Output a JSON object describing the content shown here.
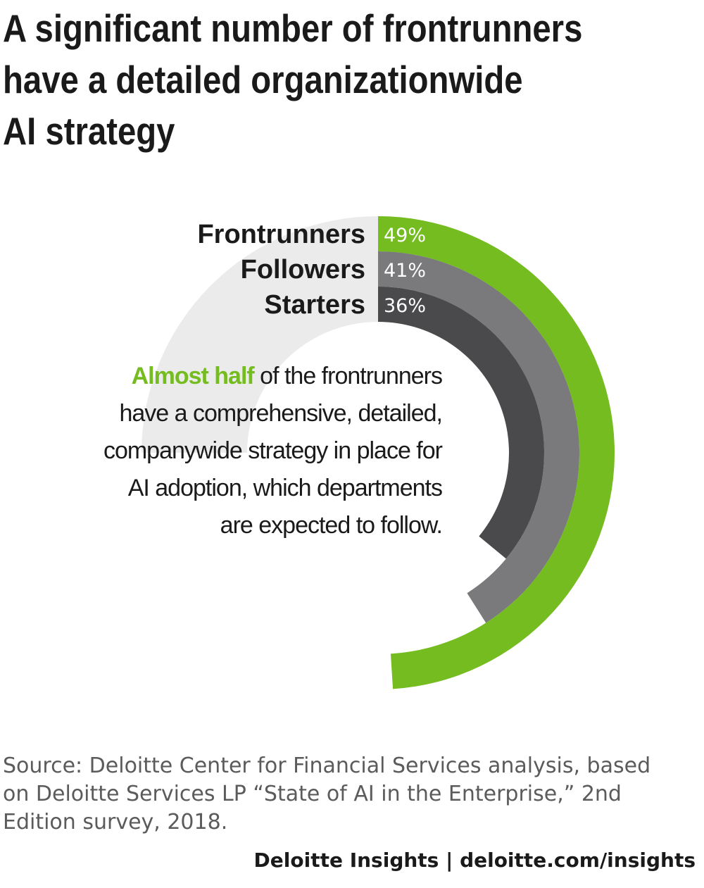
{
  "title_lines": [
    "A significant number of frontrunners",
    "have a detailed organizationwide",
    "AI strategy"
  ],
  "chart_data": {
    "type": "radial-bar",
    "title": "A significant number of frontrunners have a detailed organizationwide AI strategy",
    "categories": [
      "Frontrunners",
      "Followers",
      "Starters"
    ],
    "values": [
      49,
      41,
      36
    ],
    "labels": [
      "49%",
      "41%",
      "36%"
    ],
    "max": 100,
    "colors": {
      "Frontrunners": "#74bc1f",
      "Followers": "#7a7a7c",
      "Starters": "#4a4a4c",
      "track": "#ebebeb"
    }
  },
  "callout": {
    "highlight": "Almost half",
    "text_lines": [
      "of the frontrunners",
      "have a comprehensive, detailed,",
      "companywide strategy in place for",
      "AI adoption, which departments",
      "are expected to follow."
    ]
  },
  "source": "Source: Deloitte Center for Financial Services analysis, based on Deloitte Services LP “State of AI in the Enterprise,” 2nd Edition survey, 2018.",
  "footer": "Deloitte Insights | deloitte.com/insights"
}
